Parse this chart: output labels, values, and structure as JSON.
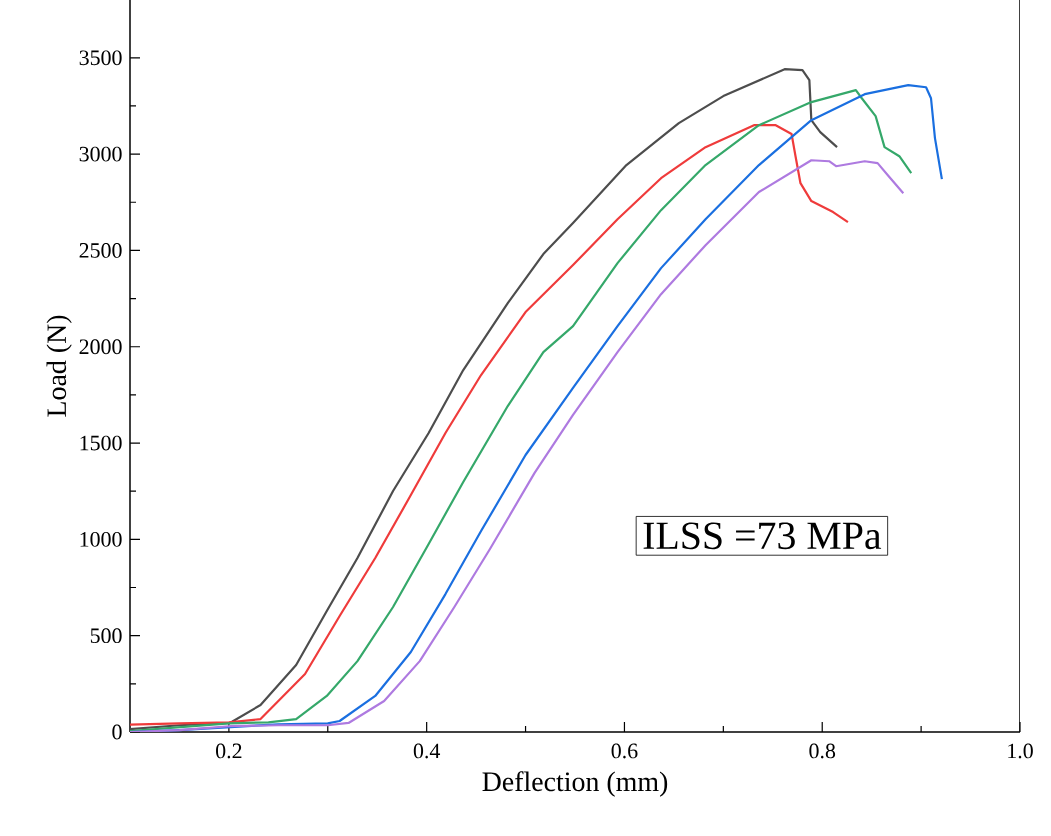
{
  "chart_data": {
    "type": "line",
    "xlabel": "Deflection (mm)",
    "ylabel": "Load (N)",
    "annotations": [
      "ILSS =73 MPa"
    ],
    "xlim": [
      0.1,
      1.0
    ],
    "ylim": [
      0,
      3800
    ],
    "xticks": [
      0.2,
      0.4,
      0.6,
      0.8,
      {
        "value": 1,
        "label": "1.0"
      }
    ],
    "yticks": [
      0,
      500,
      1000,
      1500,
      2000,
      2500,
      3000,
      3500
    ],
    "grid": false,
    "marker": "none",
    "line_style": "solid",
    "series": [
      {
        "color": "#4d4d4d",
        "x": [
          0.1,
          0.15,
          0.201,
          0.232,
          0.268,
          0.299,
          0.33,
          0.366,
          0.402,
          0.437,
          0.482,
          0.518,
          0.548,
          0.602,
          0.655,
          0.7,
          0.762,
          0.78,
          0.787,
          0.789,
          0.798,
          0.815
        ],
        "values": [
          15,
          35,
          47,
          140,
          348,
          628,
          903,
          1251,
          1552,
          1879,
          2226,
          2481,
          2642,
          2943,
          3161,
          3301,
          3441,
          3436,
          3384,
          3176,
          3114,
          3036
        ]
      },
      {
        "color": "#ef3b3b",
        "x": [
          0.1,
          0.15,
          0.2,
          0.232,
          0.277,
          0.312,
          0.348,
          0.384,
          0.419,
          0.455,
          0.5,
          0.548,
          0.593,
          0.637,
          0.682,
          0.731,
          0.753,
          0.769,
          0.773,
          0.778,
          0.789,
          0.811,
          0.826
        ],
        "values": [
          38,
          45,
          50,
          67,
          301,
          602,
          903,
          1230,
          1552,
          1853,
          2180,
          2424,
          2662,
          2875,
          3036,
          3150,
          3150,
          3104,
          2989,
          2849,
          2756,
          2699,
          2647
        ]
      },
      {
        "color": "#35a86a",
        "x": [
          0.1,
          0.15,
          0.2,
          0.24,
          0.268,
          0.299,
          0.33,
          0.366,
          0.402,
          0.437,
          0.482,
          0.518,
          0.548,
          0.593,
          0.637,
          0.682,
          0.736,
          0.789,
          0.834,
          0.84,
          0.854,
          0.863,
          0.878,
          0.89
        ],
        "values": [
          5,
          25,
          45,
          50,
          67,
          187,
          368,
          649,
          976,
          1298,
          1692,
          1972,
          2107,
          2434,
          2709,
          2943,
          3150,
          3270,
          3332,
          3290,
          3197,
          3036,
          2989,
          2901
        ]
      },
      {
        "color": "#1a6fe0",
        "x": [
          0.1,
          0.15,
          0.2,
          0.25,
          0.3,
          0.312,
          0.348,
          0.384,
          0.419,
          0.455,
          0.5,
          0.548,
          0.593,
          0.637,
          0.682,
          0.736,
          0.789,
          0.843,
          0.887,
          0.905,
          0.91,
          0.914,
          0.921
        ],
        "values": [
          0,
          10,
          25,
          40,
          45,
          57,
          187,
          415,
          716,
          1043,
          1438,
          1786,
          2107,
          2408,
          2662,
          2943,
          3176,
          3311,
          3358,
          3347,
          3290,
          3083,
          2870
        ]
      },
      {
        "color": "#ae7ae0",
        "x": [
          0.1,
          0.15,
          0.2,
          0.25,
          0.3,
          0.321,
          0.357,
          0.393,
          0.428,
          0.464,
          0.509,
          0.548,
          0.593,
          0.637,
          0.682,
          0.736,
          0.789,
          0.807,
          0.814,
          0.843,
          0.856,
          0.867,
          0.882
        ],
        "values": [
          0,
          10,
          30,
          35,
          35,
          47,
          161,
          368,
          649,
          950,
          1344,
          1646,
          1972,
          2273,
          2527,
          2803,
          2968,
          2963,
          2937,
          2963,
          2953,
          2886,
          2797
        ]
      }
    ]
  }
}
